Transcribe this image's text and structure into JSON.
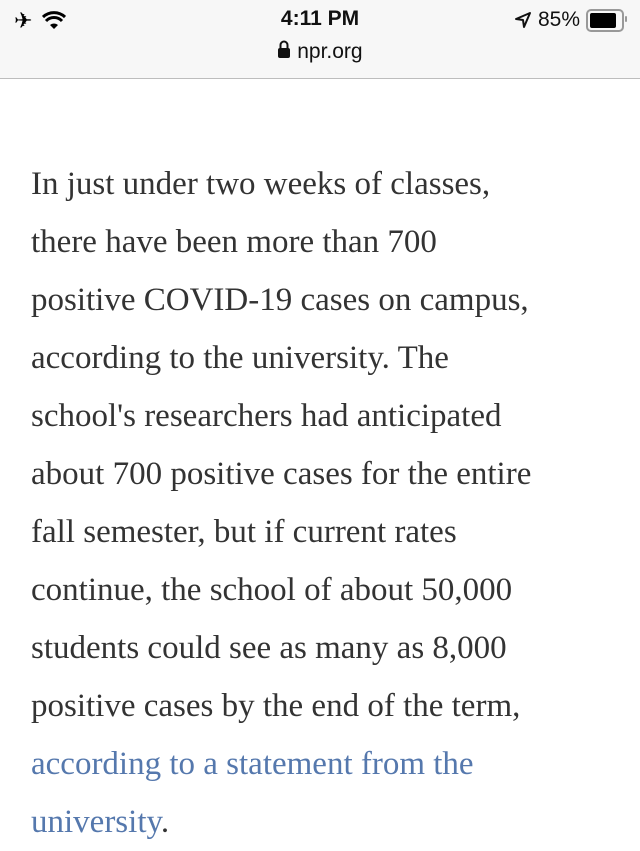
{
  "status_bar": {
    "time": "4:11 PM",
    "url": "npr.org",
    "battery": "85%",
    "battery_level": 0.85,
    "icons": [
      "airplane-icon",
      "wifi-icon",
      "location-arrow-icon",
      "battery-icon",
      "lock-icon"
    ]
  },
  "article": {
    "lines": [
      "In just under two weeks of classes,",
      "there have been more than 700",
      "positive COVID-19 cases on campus,",
      "according to the university. The",
      "school's researchers had anticipated",
      "about 700 positive cases for the entire",
      "fall semester, but if current rates",
      "continue, the school of about 50,000",
      "students could see as many as 8,000",
      "positive cases by the end of the term,"
    ],
    "link_line1": "according to a statement from the",
    "link_line2": "university",
    "end_punct": ".",
    "link_color": "#5578ad"
  }
}
